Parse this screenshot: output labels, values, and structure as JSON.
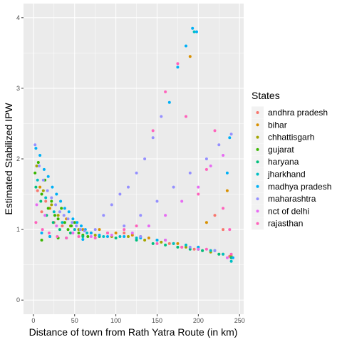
{
  "chart_data": {
    "type": "scatter",
    "xlabel": "Distance of town from Rath Yatra Route (in km)",
    "ylabel": "Estimated Stabilized IPW",
    "xlim": [
      -12,
      255
    ],
    "ylim": [
      -0.2,
      4.2
    ],
    "x_ticks": [
      0,
      50,
      100,
      150,
      200,
      250
    ],
    "x_tick_labels": [
      "0",
      "50",
      "100",
      "150",
      "200",
      "250"
    ],
    "y_ticks": [
      0,
      1,
      2,
      3,
      4
    ],
    "y_tick_labels": [
      "0",
      "1",
      "2",
      "3",
      "4"
    ],
    "grid": true,
    "legend": {
      "title": "States",
      "position": "right",
      "entries": [
        {
          "name": "andhra pradesh",
          "color": "#F8766D"
        },
        {
          "name": "bihar",
          "color": "#D89000"
        },
        {
          "name": "chhattisgarh",
          "color": "#A3A500"
        },
        {
          "name": "gujarat",
          "color": "#39B600"
        },
        {
          "name": "haryana",
          "color": "#00BF7D"
        },
        {
          "name": "jharkhand",
          "color": "#00BFC4"
        },
        {
          "name": "madhya pradesh",
          "color": "#00B0F6"
        },
        {
          "name": "maharashtra",
          "color": "#9590FF"
        },
        {
          "name": "nct of delhi",
          "color": "#E76BF3"
        },
        {
          "name": "rajasthan",
          "color": "#FF62BC"
        }
      ]
    },
    "series": [
      {
        "name": "andhra pradesh",
        "points": [
          [
            5,
            1.55
          ],
          [
            10,
            1.25
          ],
          [
            15,
            1.4
          ],
          [
            25,
            1.1
          ],
          [
            35,
            1.05
          ],
          [
            50,
            1.0
          ],
          [
            70,
            0.95
          ],
          [
            90,
            0.95
          ],
          [
            110,
            0.95
          ],
          [
            130,
            0.9
          ],
          [
            150,
            0.85
          ],
          [
            165,
            0.8
          ],
          [
            180,
            0.75
          ],
          [
            195,
            0.72
          ],
          [
            205,
            0.7
          ],
          [
            215,
            0.7
          ],
          [
            220,
            1.2
          ],
          [
            225,
            0.65
          ],
          [
            230,
            1.0
          ],
          [
            238,
            0.62
          ]
        ]
      },
      {
        "name": "bihar",
        "points": [
          [
            8,
            1.6
          ],
          [
            20,
            1.3
          ],
          [
            40,
            1.15
          ],
          [
            60,
            1.0
          ],
          [
            80,
            1.0
          ],
          [
            100,
            0.95
          ],
          [
            120,
            0.92
          ],
          [
            140,
            0.88
          ],
          [
            160,
            0.85
          ],
          [
            175,
            0.8
          ],
          [
            190,
            3.45
          ],
          [
            200,
            0.75
          ],
          [
            210,
            1.1
          ],
          [
            220,
            0.7
          ],
          [
            235,
            1.55
          ],
          [
            240,
            0.6
          ]
        ]
      },
      {
        "name": "chhattisgarh",
        "points": [
          [
            4,
            1.9
          ],
          [
            12,
            1.55
          ],
          [
            22,
            1.35
          ],
          [
            30,
            1.2
          ],
          [
            45,
            1.05
          ],
          [
            55,
            1.0
          ],
          [
            75,
            0.92
          ],
          [
            95,
            0.9
          ],
          [
            115,
            0.9
          ],
          [
            135,
            0.85
          ],
          [
            155,
            0.82
          ],
          [
            170,
            0.8
          ],
          [
            185,
            0.75
          ],
          [
            200,
            0.72
          ],
          [
            215,
            0.68
          ],
          [
            230,
            0.65
          ],
          [
            240,
            0.62
          ]
        ]
      },
      {
        "name": "gujarat",
        "points": [
          [
            2,
            1.8
          ],
          [
            6,
            1.95
          ],
          [
            10,
            1.5
          ],
          [
            14,
            1.7
          ],
          [
            18,
            1.3
          ],
          [
            22,
            1.4
          ],
          [
            26,
            1.2
          ],
          [
            30,
            1.15
          ],
          [
            34,
            1.3
          ],
          [
            38,
            1.1
          ],
          [
            42,
            1.0
          ],
          [
            46,
            1.05
          ],
          [
            50,
            1.1
          ],
          [
            55,
            0.95
          ],
          [
            60,
            0.92
          ],
          [
            66,
            0.9
          ],
          [
            10,
            0.85
          ],
          [
            20,
            0.9
          ],
          [
            30,
            0.88
          ]
        ]
      },
      {
        "name": "haryana",
        "points": [
          [
            3,
            1.6
          ],
          [
            9,
            1.4
          ],
          [
            16,
            1.2
          ],
          [
            24,
            1.1
          ],
          [
            32,
            1.0
          ],
          [
            45,
            0.95
          ],
          [
            60,
            0.9
          ],
          [
            80,
            0.9
          ],
          [
            100,
            0.88
          ],
          [
            125,
            0.85
          ],
          [
            145,
            0.8
          ],
          [
            160,
            0.78
          ],
          [
            175,
            0.75
          ],
          [
            190,
            0.72
          ],
          [
            205,
            0.7
          ],
          [
            225,
            0.65
          ],
          [
            240,
            0.6
          ]
        ]
      },
      {
        "name": "jharkhand",
        "points": [
          [
            5,
            1.7
          ],
          [
            15,
            1.45
          ],
          [
            25,
            1.25
          ],
          [
            35,
            1.1
          ],
          [
            50,
            1.0
          ],
          [
            65,
            0.95
          ],
          [
            85,
            0.9
          ],
          [
            105,
            0.9
          ],
          [
            125,
            0.88
          ],
          [
            150,
            0.85
          ],
          [
            170,
            0.8
          ],
          [
            185,
            0.78
          ],
          [
            195,
            3.8
          ],
          [
            200,
            0.72
          ],
          [
            215,
            0.7
          ],
          [
            230,
            0.65
          ],
          [
            240,
            0.55
          ]
        ]
      },
      {
        "name": "madhya pradesh",
        "points": [
          [
            3,
            2.15
          ],
          [
            8,
            2.05
          ],
          [
            13,
            1.85
          ],
          [
            18,
            1.75
          ],
          [
            23,
            1.6
          ],
          [
            28,
            1.5
          ],
          [
            33,
            1.4
          ],
          [
            38,
            1.3
          ],
          [
            43,
            1.25
          ],
          [
            48,
            1.15
          ],
          [
            53,
            1.1
          ],
          [
            58,
            1.05
          ],
          [
            63,
            1.0
          ],
          [
            70,
            0.95
          ],
          [
            80,
            0.92
          ],
          [
            90,
            0.9
          ],
          [
            110,
            0.9
          ],
          [
            130,
            0.88
          ],
          [
            150,
            0.85
          ],
          [
            165,
            2.8
          ],
          [
            175,
            3.3
          ],
          [
            185,
            3.6
          ],
          [
            193,
            3.85
          ],
          [
            198,
            3.8
          ],
          [
            200,
            0.75
          ],
          [
            220,
            0.7
          ],
          [
            235,
            1.8
          ],
          [
            238,
            2.3
          ],
          [
            242,
            0.6
          ],
          [
            10,
            0.95
          ],
          [
            20,
            0.9
          ],
          [
            40,
            0.88
          ],
          [
            60,
            0.86
          ]
        ]
      },
      {
        "name": "maharashtra",
        "points": [
          [
            2,
            2.2
          ],
          [
            7,
            1.9
          ],
          [
            12,
            1.7
          ],
          [
            17,
            1.55
          ],
          [
            22,
            1.45
          ],
          [
            27,
            1.35
          ],
          [
            32,
            1.25
          ],
          [
            37,
            1.2
          ],
          [
            42,
            1.15
          ],
          [
            47,
            1.1
          ],
          [
            52,
            1.05
          ],
          [
            57,
            1.0
          ],
          [
            62,
            0.98
          ],
          [
            75,
            1.0
          ],
          [
            85,
            1.2
          ],
          [
            95,
            1.35
          ],
          [
            105,
            1.5
          ],
          [
            115,
            1.6
          ],
          [
            125,
            1.8
          ],
          [
            135,
            2.0
          ],
          [
            145,
            2.3
          ],
          [
            155,
            2.6
          ],
          [
            110,
            1.05
          ],
          [
            130,
            1.2
          ],
          [
            150,
            1.4
          ],
          [
            170,
            1.6
          ],
          [
            190,
            1.8
          ],
          [
            210,
            2.0
          ],
          [
            225,
            2.2
          ],
          [
            240,
            2.35
          ],
          [
            130,
            0.9
          ],
          [
            160,
            0.85
          ],
          [
            190,
            0.75
          ],
          [
            220,
            0.7
          ]
        ]
      },
      {
        "name": "nct of delhi",
        "points": [
          [
            4,
            1.35
          ],
          [
            14,
            1.2
          ],
          [
            28,
            1.05
          ],
          [
            48,
            0.95
          ],
          [
            70,
            0.9
          ],
          [
            95,
            0.92
          ],
          [
            120,
            0.95
          ],
          [
            140,
            1.05
          ],
          [
            160,
            1.2
          ],
          [
            180,
            1.4
          ],
          [
            200,
            1.6
          ],
          [
            215,
            1.9
          ],
          [
            230,
            2.05
          ],
          [
            160,
            0.85
          ],
          [
            200,
            0.72
          ],
          [
            235,
            0.6
          ]
        ]
      },
      {
        "name": "rajasthan",
        "points": [
          [
            3,
            1.1
          ],
          [
            11,
            1.0
          ],
          [
            19,
            0.95
          ],
          [
            29,
            0.9
          ],
          [
            40,
            0.88
          ],
          [
            55,
            0.9
          ],
          [
            75,
            0.88
          ],
          [
            90,
            0.95
          ],
          [
            110,
            1.0
          ],
          [
            125,
            1.05
          ],
          [
            145,
            2.4
          ],
          [
            160,
            2.95
          ],
          [
            175,
            3.35
          ],
          [
            185,
            2.6
          ],
          [
            200,
            1.5
          ],
          [
            210,
            1.85
          ],
          [
            220,
            2.4
          ],
          [
            230,
            1.3
          ],
          [
            238,
            1.0
          ],
          [
            240,
            0.65
          ],
          [
            150,
            0.8
          ],
          [
            180,
            0.75
          ],
          [
            210,
            0.72
          ]
        ]
      }
    ]
  }
}
